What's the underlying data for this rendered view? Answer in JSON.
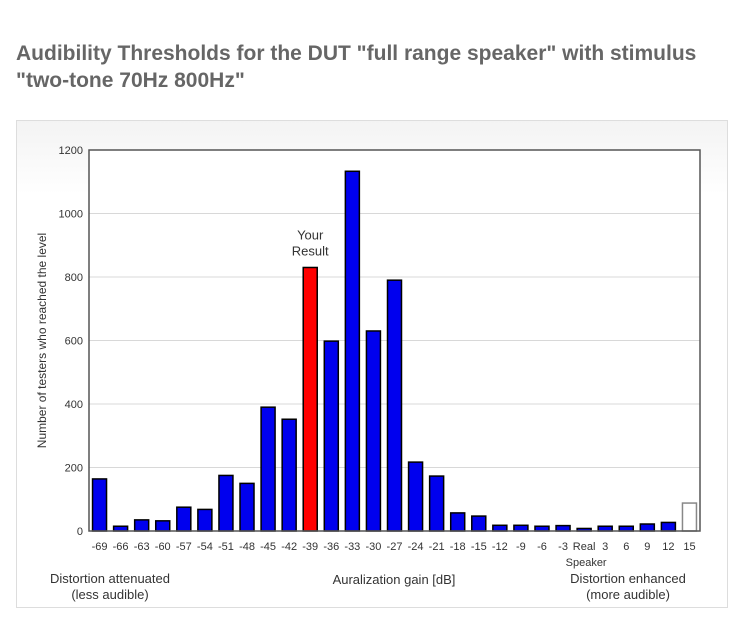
{
  "title": "Audibility Thresholds for the DUT \"full range speaker\" with stimulus \"two-tone 70Hz 800Hz\"",
  "chart_data": {
    "type": "bar",
    "title": "Audibility Thresholds for the DUT \"full range speaker\" with stimulus \"two-tone 70Hz 800Hz\"",
    "xlabel": "Auralization gain [dB]",
    "ylabel": "Number of testers who reached the level",
    "ylim": [
      0,
      1200
    ],
    "yticks": [
      0,
      200,
      400,
      600,
      800,
      1000,
      1200
    ],
    "grid": true,
    "categories": [
      "-69",
      "-66",
      "-63",
      "-60",
      "-57",
      "-54",
      "-51",
      "-48",
      "-45",
      "-42",
      "-39",
      "-36",
      "-33",
      "-30",
      "-27",
      "-24",
      "-21",
      "-18",
      "-15",
      "-12",
      "-9",
      "-6",
      "-3",
      "Real Speaker",
      "3",
      "6",
      "9",
      "12",
      "15"
    ],
    "values": [
      164,
      15,
      35,
      32,
      75,
      68,
      175,
      150,
      390,
      352,
      830,
      598,
      1133,
      630,
      790,
      217,
      173,
      57,
      47,
      18,
      18,
      15,
      17,
      8,
      15,
      15,
      22,
      27,
      88
    ],
    "highlight_index": 10,
    "highlight_label": "Your Result",
    "colors": {
      "default": "#0000ee",
      "highlight": "#ff0000",
      "last": "#ffffff"
    },
    "left_note": [
      "Distortion attenuated",
      "(less audible)"
    ],
    "right_note": [
      "Distortion enhanced",
      "(more audible)"
    ]
  }
}
